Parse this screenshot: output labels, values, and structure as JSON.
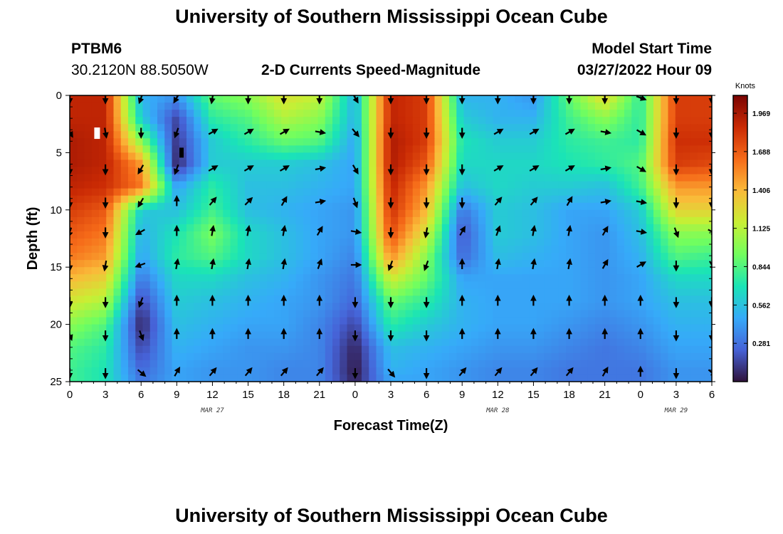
{
  "header": {
    "title": "University of Southern Mississippi Ocean Cube",
    "station": "PTBM6",
    "coords": "30.2120N  88.5050W",
    "subtitle": "2-D Currents Speed-Magnitude",
    "model_label": "Model Start Time",
    "model_time": "03/27/2022 Hour 09"
  },
  "footer": {
    "title": "University of Southern Mississippi Ocean Cube"
  },
  "chart_data": {
    "type": "heatmap",
    "title": "2-D Currents Speed-Magnitude",
    "xlabel": "Forecast Time(Z)",
    "ylabel": "Depth (ft)",
    "x_ticks": [
      "0",
      "3",
      "6",
      "9",
      "12",
      "15",
      "18",
      "21",
      "0",
      "3",
      "6",
      "9",
      "12",
      "15",
      "18",
      "21",
      "0",
      "3",
      "6"
    ],
    "x_hours": [
      0,
      3,
      6,
      9,
      12,
      15,
      18,
      21,
      24,
      27,
      30,
      33,
      36,
      39,
      42,
      45,
      48,
      51,
      54
    ],
    "date_labels": [
      {
        "label": "MAR 27",
        "hour": 12
      },
      {
        "label": "MAR 28",
        "hour": 36
      },
      {
        "label": "MAR 29",
        "hour": 51
      }
    ],
    "xlim": [
      0,
      54
    ],
    "y_ticks": [
      "0",
      "5",
      "10",
      "15",
      "20",
      "25"
    ],
    "y_values": [
      0,
      5,
      10,
      15,
      20,
      25
    ],
    "ylim": [
      0,
      25
    ],
    "y_inverted": true,
    "colorbar": {
      "unit": "Knots",
      "ticks": [
        "1.969",
        "1.688",
        "1.406",
        "1.125",
        "0.844",
        "0.562",
        "0.281"
      ],
      "tick_values": [
        1.969,
        1.688,
        1.406,
        1.125,
        0.844,
        0.562,
        0.281
      ],
      "range": [
        0,
        2.1
      ],
      "colors": [
        "#30123b",
        "#4662d7",
        "#36aaf9",
        "#1ae4b6",
        "#72fe5e",
        "#c8ef34",
        "#faba39",
        "#f66b19",
        "#ca2a04",
        "#7a0403"
      ]
    },
    "grid_hours": [
      0,
      3,
      6,
      9,
      12,
      15,
      18,
      21,
      24,
      27,
      30,
      33,
      36,
      39,
      42,
      45,
      48,
      51,
      54
    ],
    "grid_depths": [
      0,
      2,
      4,
      6,
      8,
      10,
      12,
      14,
      16,
      18,
      20,
      22,
      24,
      25
    ],
    "speed": [
      [
        1.9,
        1.9,
        0.5,
        0.4,
        0.9,
        1.0,
        1.25,
        1.15,
        0.5,
        1.9,
        1.8,
        0.5,
        0.5,
        0.4,
        0.9,
        1.3,
        0.75,
        1.8,
        1.8
      ],
      [
        1.9,
        1.9,
        0.6,
        0.15,
        0.75,
        0.85,
        1.1,
        1.0,
        0.5,
        1.9,
        1.8,
        0.6,
        0.5,
        0.5,
        0.8,
        1.0,
        0.75,
        1.8,
        1.8
      ],
      [
        1.95,
        1.9,
        1.0,
        0.1,
        0.6,
        0.75,
        0.9,
        0.85,
        0.45,
        1.95,
        1.8,
        0.7,
        0.6,
        0.6,
        0.75,
        0.8,
        0.75,
        1.85,
        1.85
      ],
      [
        1.95,
        1.9,
        1.5,
        0.05,
        0.6,
        0.6,
        0.6,
        0.55,
        0.45,
        1.95,
        1.7,
        0.65,
        0.65,
        0.65,
        0.7,
        0.75,
        0.85,
        1.8,
        1.75
      ],
      [
        1.9,
        1.85,
        1.6,
        0.45,
        0.75,
        0.55,
        0.55,
        0.5,
        0.45,
        1.9,
        1.5,
        0.55,
        0.65,
        0.6,
        0.6,
        0.55,
        0.8,
        1.5,
        1.5
      ],
      [
        1.8,
        1.7,
        0.6,
        0.55,
        0.8,
        0.55,
        0.5,
        0.45,
        0.4,
        1.85,
        1.4,
        0.3,
        0.6,
        0.55,
        0.45,
        0.45,
        0.6,
        1.3,
        1.3
      ],
      [
        1.7,
        1.6,
        0.5,
        0.7,
        0.95,
        0.65,
        0.55,
        0.45,
        0.4,
        1.75,
        1.2,
        0.2,
        0.6,
        0.55,
        0.45,
        0.4,
        0.55,
        1.0,
        1.0
      ],
      [
        1.6,
        1.5,
        0.45,
        0.75,
        0.85,
        0.65,
        0.55,
        0.45,
        0.35,
        1.55,
        1.0,
        0.25,
        0.55,
        0.5,
        0.45,
        0.4,
        0.5,
        0.85,
        0.8
      ],
      [
        1.4,
        1.3,
        0.3,
        0.65,
        0.65,
        0.55,
        0.5,
        0.4,
        0.3,
        1.2,
        0.9,
        0.45,
        0.45,
        0.45,
        0.45,
        0.4,
        0.45,
        0.65,
        0.65
      ],
      [
        1.2,
        1.1,
        0.15,
        0.6,
        0.55,
        0.5,
        0.45,
        0.4,
        0.25,
        0.9,
        0.75,
        0.5,
        0.45,
        0.45,
        0.45,
        0.4,
        0.45,
        0.55,
        0.55
      ],
      [
        1.0,
        0.85,
        0.05,
        0.55,
        0.5,
        0.45,
        0.45,
        0.35,
        0.15,
        0.75,
        0.6,
        0.5,
        0.45,
        0.45,
        0.4,
        0.35,
        0.4,
        0.5,
        0.5
      ],
      [
        0.85,
        0.75,
        0.15,
        0.5,
        0.45,
        0.4,
        0.4,
        0.35,
        0.05,
        0.55,
        0.5,
        0.45,
        0.4,
        0.4,
        0.35,
        0.3,
        0.35,
        0.45,
        0.45
      ],
      [
        0.8,
        0.7,
        0.25,
        0.45,
        0.4,
        0.4,
        0.35,
        0.35,
        0.02,
        0.5,
        0.45,
        0.4,
        0.35,
        0.35,
        0.3,
        0.3,
        0.3,
        0.4,
        0.4
      ],
      [
        0.8,
        0.7,
        0.3,
        0.45,
        0.4,
        0.4,
        0.35,
        0.35,
        0.05,
        0.45,
        0.45,
        0.4,
        0.35,
        0.35,
        0.3,
        0.3,
        0.3,
        0.4,
        0.4
      ]
    ],
    "arrow_hours": [
      0,
      3,
      6,
      9,
      12,
      15,
      18,
      21,
      24,
      27,
      30,
      33,
      36,
      39,
      42,
      45,
      48,
      51,
      54
    ],
    "arrow_depths": [
      0.2,
      3.2,
      6.4,
      9.3,
      11.9,
      14.8,
      18.0,
      20.9,
      24.2
    ],
    "arrow_directions": [
      [
        180,
        180,
        200,
        210,
        190,
        180,
        180,
        180,
        150,
        180,
        180,
        180,
        180,
        180,
        180,
        180,
        110,
        180,
        180
      ],
      [
        150,
        170,
        180,
        200,
        60,
        60,
        60,
        100,
        140,
        180,
        180,
        180,
        60,
        60,
        60,
        100,
        120,
        180,
        180
      ],
      [
        180,
        180,
        210,
        200,
        60,
        60,
        60,
        80,
        150,
        180,
        180,
        180,
        60,
        60,
        60,
        80,
        120,
        180,
        180
      ],
      [
        180,
        180,
        210,
        0,
        40,
        45,
        30,
        80,
        160,
        180,
        180,
        180,
        40,
        40,
        30,
        80,
        100,
        180,
        180
      ],
      [
        200,
        180,
        240,
        0,
        10,
        10,
        10,
        30,
        100,
        180,
        190,
        30,
        20,
        10,
        10,
        30,
        100,
        160,
        120
      ],
      [
        180,
        190,
        250,
        10,
        10,
        10,
        10,
        20,
        90,
        200,
        200,
        0,
        10,
        10,
        10,
        30,
        60,
        180,
        150
      ],
      [
        180,
        180,
        200,
        0,
        0,
        0,
        0,
        0,
        180,
        180,
        180,
        0,
        0,
        0,
        0,
        0,
        0,
        180,
        180
      ],
      [
        160,
        180,
        160,
        0,
        0,
        0,
        0,
        0,
        180,
        180,
        180,
        0,
        0,
        0,
        0,
        0,
        0,
        180,
        180
      ],
      [
        180,
        180,
        130,
        30,
        40,
        40,
        40,
        40,
        180,
        140,
        180,
        40,
        40,
        40,
        40,
        30,
        0,
        180,
        130
      ]
    ],
    "white_boxes": [
      {
        "hour": 2.3,
        "depth": 3.3
      }
    ],
    "black_boxes": [
      {
        "hour": 9.4,
        "depth": 5.0
      }
    ]
  }
}
